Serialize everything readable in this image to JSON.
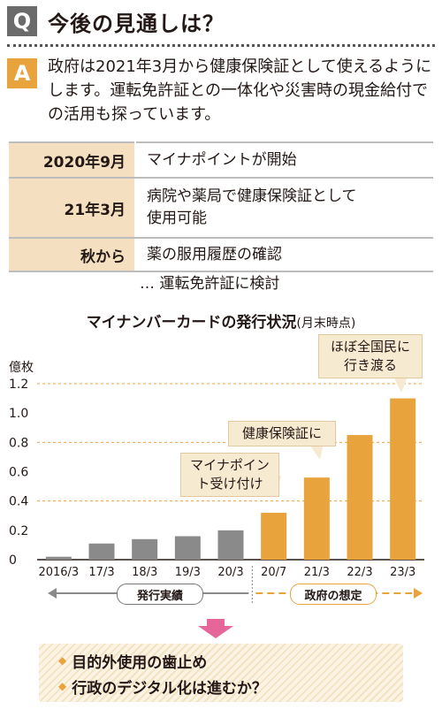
{
  "question": {
    "badge": "Q",
    "title": "今後の見通しは？"
  },
  "answer": {
    "badge": "A",
    "text": "政府は2021年3月から健康保険証として使えるようにします。運転免許証との一体化や災害時の現金給付での活用も探っています。"
  },
  "timeline": [
    {
      "date": "2020年9月",
      "event": "マイナポイントが開始"
    },
    {
      "date": "21年3月",
      "event": "病院や薬局で健康保険証として使用可能"
    },
    {
      "date": "秋から",
      "event": "薬の服用履歴の確認"
    }
  ],
  "timeline_note": "… 運転免許証に検討",
  "chart_data": {
    "type": "bar",
    "title": "マイナンバーカードの発行状況",
    "subtitle": "(月末時点)",
    "ylabel": "億枚",
    "ylim": [
      0,
      1.2
    ],
    "yticks": [
      "1.2",
      "1.0",
      "0.8",
      "0.6",
      "0.4",
      "0.2",
      "0"
    ],
    "categories": [
      "2016/3",
      "17/3",
      "18/3",
      "19/3",
      "20/3",
      "20/7",
      "21/3",
      "22/3",
      "23/3"
    ],
    "values": [
      0.02,
      0.11,
      0.14,
      0.16,
      0.2,
      0.32,
      0.56,
      0.85,
      1.1
    ],
    "groups": [
      {
        "label": "発行実績",
        "color": "#8a8a8a",
        "count": 5
      },
      {
        "label": "政府の想定",
        "color": "#e8a33d",
        "count": 4
      }
    ],
    "annotations": [
      {
        "text": "マイナポイント受け付け"
      },
      {
        "text": "健康保険証に"
      },
      {
        "text": "ほぼ全国民に行き渡る"
      }
    ],
    "grid": "dashed at 0.4, 0.8, 1.2"
  },
  "bottom": {
    "items": [
      "目的外使用の歯止め",
      "行政のデジタル化は進むか？"
    ]
  }
}
